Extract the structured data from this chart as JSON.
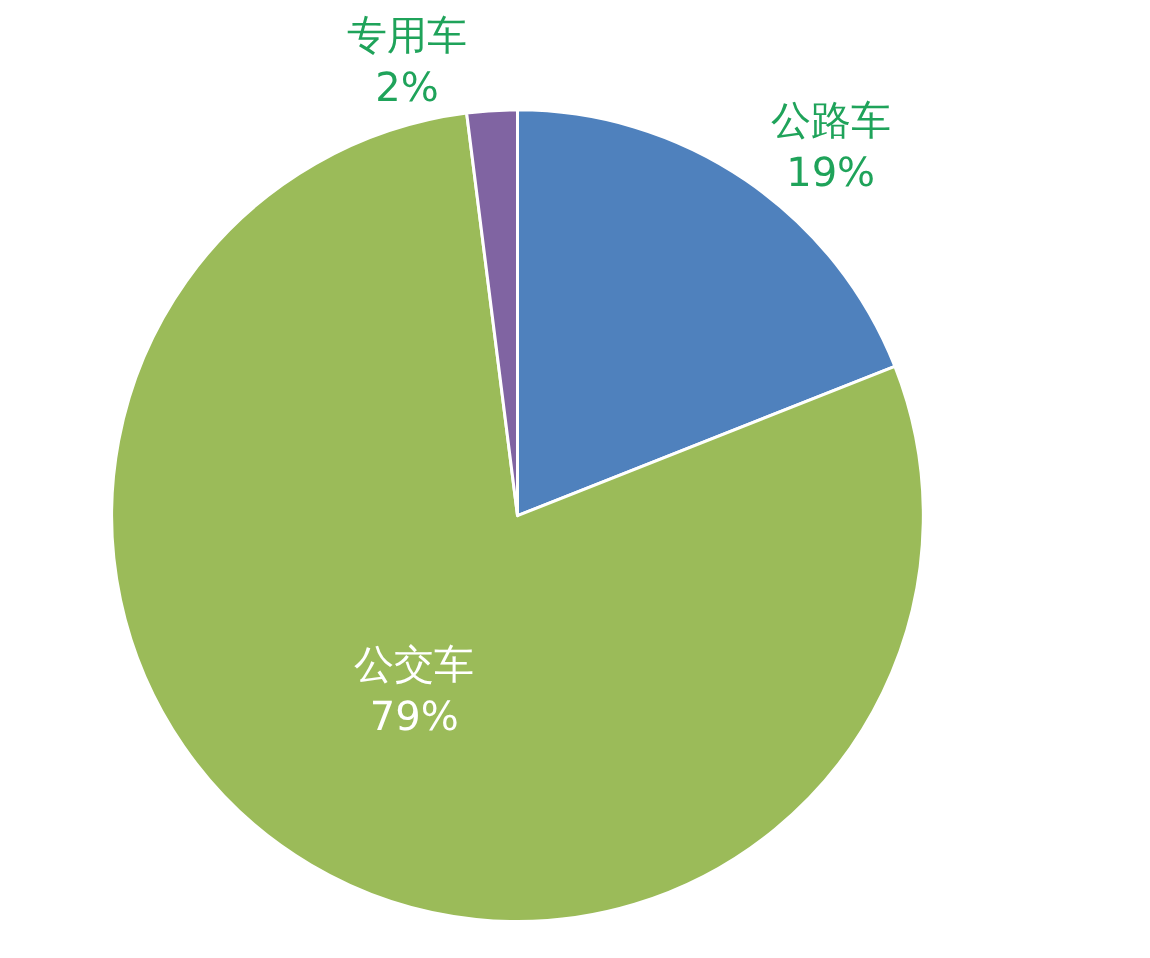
{
  "chart_data": {
    "type": "pie",
    "categories": [
      "公路车",
      "公交车",
      "专用车"
    ],
    "values": [
      19,
      79,
      2
    ],
    "colors": [
      "#4f81bd",
      "#9bbb59",
      "#8064a2"
    ],
    "value_labels": [
      "19%",
      "79%",
      "2%"
    ],
    "legend": false
  }
}
